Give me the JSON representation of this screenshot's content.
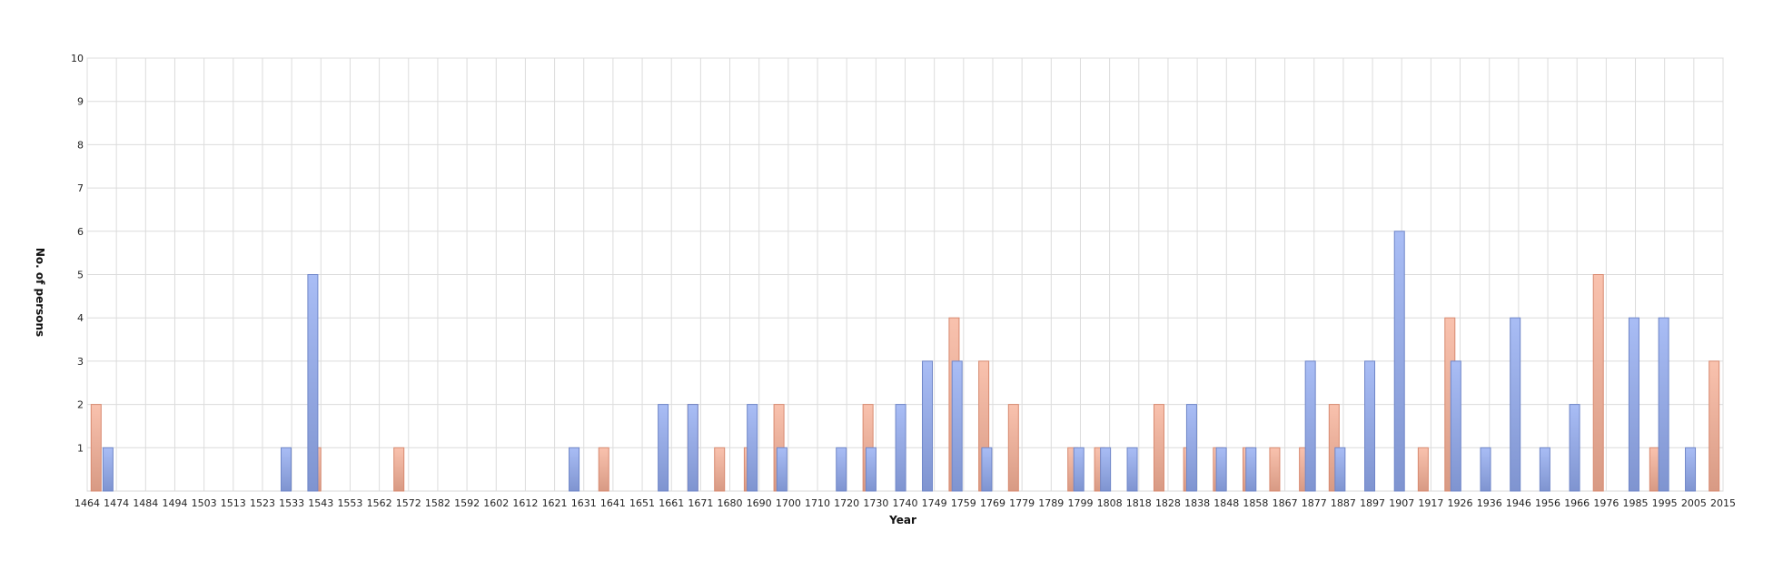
{
  "chart_data": {
    "type": "bar",
    "title": "",
    "xlabel": "Year",
    "ylabel": "No. of persons",
    "ylim": [
      0,
      10
    ],
    "yticks": [
      1,
      2,
      3,
      4,
      5,
      6,
      7,
      8,
      9,
      10
    ],
    "x_tick_labels": [
      "1464",
      "1474",
      "1484",
      "1494",
      "1503",
      "1513",
      "1523",
      "1533",
      "1543",
      "1553",
      "1562",
      "1572",
      "1582",
      "1592",
      "1602",
      "1612",
      "1621",
      "1631",
      "1641",
      "1651",
      "1661",
      "1671",
      "1680",
      "1690",
      "1700",
      "1710",
      "1720",
      "1730",
      "1740",
      "1749",
      "1759",
      "1769",
      "1779",
      "1789",
      "1799",
      "1808",
      "1818",
      "1828",
      "1838",
      "1848",
      "1858",
      "1867",
      "1877",
      "1887",
      "1897",
      "1907",
      "1917",
      "1926",
      "1936",
      "1946",
      "1956",
      "1966",
      "1976",
      "1985",
      "1995",
      "2005",
      "2015"
    ],
    "grid": true,
    "legend": "none",
    "colors": {
      "blue": "#8fa6e0",
      "salmon": "#f0a890",
      "blue_edge": "#6f86c8",
      "salmon_edge": "#d88a70"
    },
    "series": [
      {
        "color": "salmon",
        "points": [
          [
            1467,
            2
          ],
          [
            1541,
            1
          ],
          [
            1569,
            1
          ],
          [
            1638,
            1
          ],
          [
            1668,
            2
          ],
          [
            1677,
            1
          ],
          [
            1687,
            1
          ],
          [
            1697,
            2
          ],
          [
            1727,
            2
          ],
          [
            1756,
            4
          ],
          [
            1766,
            3
          ],
          [
            1776,
            2
          ],
          [
            1796,
            1
          ],
          [
            1805,
            1
          ],
          [
            1825,
            2
          ],
          [
            1835,
            1
          ],
          [
            1845,
            1
          ],
          [
            1855,
            1
          ],
          [
            1864,
            1
          ],
          [
            1874,
            1
          ],
          [
            1884,
            2
          ],
          [
            1914,
            1
          ],
          [
            1923,
            4
          ],
          [
            1973,
            5
          ],
          [
            1992,
            1
          ],
          [
            2012,
            3
          ]
        ]
      },
      {
        "color": "blue",
        "points": [
          [
            1471,
            1
          ],
          [
            1531,
            1
          ],
          [
            1540,
            5
          ],
          [
            1628,
            1
          ],
          [
            1658,
            2
          ],
          [
            1668,
            2
          ],
          [
            1688,
            2
          ],
          [
            1698,
            1
          ],
          [
            1718,
            1
          ],
          [
            1728,
            1
          ],
          [
            1738,
            2
          ],
          [
            1747,
            3
          ],
          [
            1757,
            3
          ],
          [
            1767,
            1
          ],
          [
            1798,
            1
          ],
          [
            1807,
            1
          ],
          [
            1816,
            1
          ],
          [
            1836,
            2
          ],
          [
            1846,
            1
          ],
          [
            1856,
            1
          ],
          [
            1876,
            3
          ],
          [
            1886,
            1
          ],
          [
            1896,
            3
          ],
          [
            1906,
            6
          ],
          [
            1925,
            3
          ],
          [
            1935,
            1
          ],
          [
            1945,
            4
          ],
          [
            1955,
            1
          ],
          [
            1965,
            2
          ],
          [
            1985,
            4
          ],
          [
            1995,
            4
          ],
          [
            2004,
            1
          ]
        ]
      }
    ]
  }
}
